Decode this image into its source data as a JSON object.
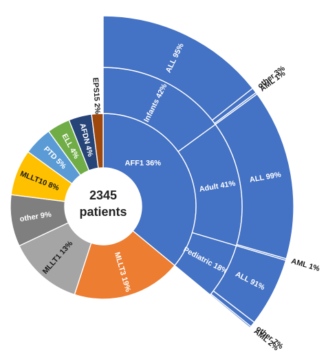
{
  "chart_data": {
    "type": "sunburst",
    "center": {
      "line1": "2345",
      "line2": "patients"
    },
    "inner_ring": [
      {
        "label": "AFF1 36%",
        "value": 36,
        "color": "#4472c4"
      },
      {
        "label": "MLLT3 19%",
        "value": 19,
        "color": "#ed7d31"
      },
      {
        "label": "MLLT1 13%",
        "value": 13,
        "color": "#a5a5a5"
      },
      {
        "label": "other 9%",
        "value": 9,
        "color": "#7f7f7f"
      },
      {
        "label": "MLLT10 8%",
        "value": 8,
        "color": "#ffc000"
      },
      {
        "label": "PTD 5%",
        "value": 5,
        "color": "#5b9bd5"
      },
      {
        "label": "ELL 4%",
        "value": 4,
        "color": "#70ad47"
      },
      {
        "label": "AFDN 4%",
        "value": 4,
        "color": "#264478"
      },
      {
        "label": "EPS15 2%",
        "value": 2,
        "color": "#9e480e"
      }
    ],
    "middle_ring": [
      {
        "label": "Infants 42%",
        "value": 42,
        "color": "#4472c4"
      },
      {
        "label": "Adult 41%",
        "value": 41,
        "color": "#4472c4"
      },
      {
        "label": "Pediatric 18%",
        "value": 18,
        "color": "#4472c4"
      }
    ],
    "outer_ring": [
      {
        "group": "Infants",
        "label": "ALL 95%",
        "value": 95,
        "color": "#4472c4"
      },
      {
        "group": "Infants",
        "label": "other 3%",
        "value": 3,
        "color": "#4472c4"
      },
      {
        "group": "Infants",
        "label": "AML 1%",
        "value": 1,
        "color": "#4472c4"
      },
      {
        "group": "Adult",
        "label": "ALL 99%",
        "value": 99,
        "color": "#4472c4"
      },
      {
        "group": "Adult",
        "label": "AML 1%",
        "value": 1,
        "color": "#4472c4"
      },
      {
        "group": "Pediatric",
        "label": "ALL 91%",
        "value": 91,
        "color": "#4472c4"
      },
      {
        "group": "Pediatric",
        "label": "other 7%",
        "value": 7,
        "color": "#4472c4"
      },
      {
        "group": "Pediatric",
        "label": "AML 2%",
        "value": 2,
        "color": "#4472c4"
      }
    ],
    "label_colors": {
      "light": "#ffffff",
      "dark": "#1a1a1a"
    }
  }
}
